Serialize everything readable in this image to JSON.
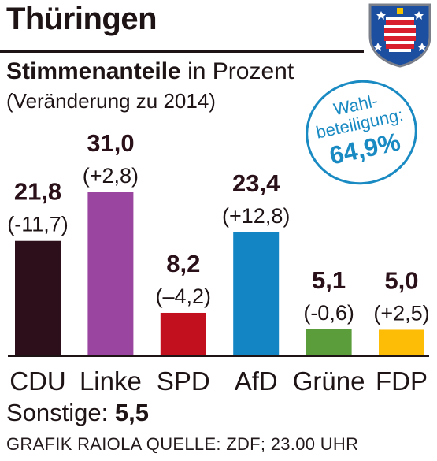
{
  "header": {
    "title": "Thüringen",
    "subtitle_bold": "Stimmenanteile",
    "subtitle_rest": "in Prozent",
    "subnote": "(Veränderung zu 2014)"
  },
  "turnout": {
    "label_line1": "Wahl-",
    "label_line2": "beteiligung:",
    "value": "64,9%"
  },
  "chart_data": {
    "type": "bar",
    "categories": [
      "CDU",
      "Linke",
      "SPD",
      "AfD",
      "Grüne",
      "FDP"
    ],
    "values": [
      21.8,
      31.0,
      8.2,
      23.4,
      5.1,
      5.0
    ],
    "value_labels": [
      "21,8",
      "31,0",
      "8,2",
      "23,4",
      "5,1",
      "5,0"
    ],
    "change_labels": [
      "(-11,7)",
      "(+2,8)",
      "(–4,2)",
      "(+12,8)",
      "(-0,6)",
      "(+2,5)"
    ],
    "colors": [
      "#2c0f1b",
      "#9a45a0",
      "#c2101f",
      "#1485c4",
      "#5b9d3b",
      "#fdbc06"
    ],
    "ylim": [
      0,
      31.0
    ],
    "grid": false,
    "title": "",
    "xlabel": "",
    "ylabel": ""
  },
  "footer": {
    "sonstige_label": "Sonstige:",
    "sonstige_value": "5,5",
    "source": "GRAFIK RAIOLA QUELLE: ZDF; 23.00 UHR"
  },
  "colors": {
    "text": "#1e1416",
    "accent": "#1a8ac3"
  }
}
